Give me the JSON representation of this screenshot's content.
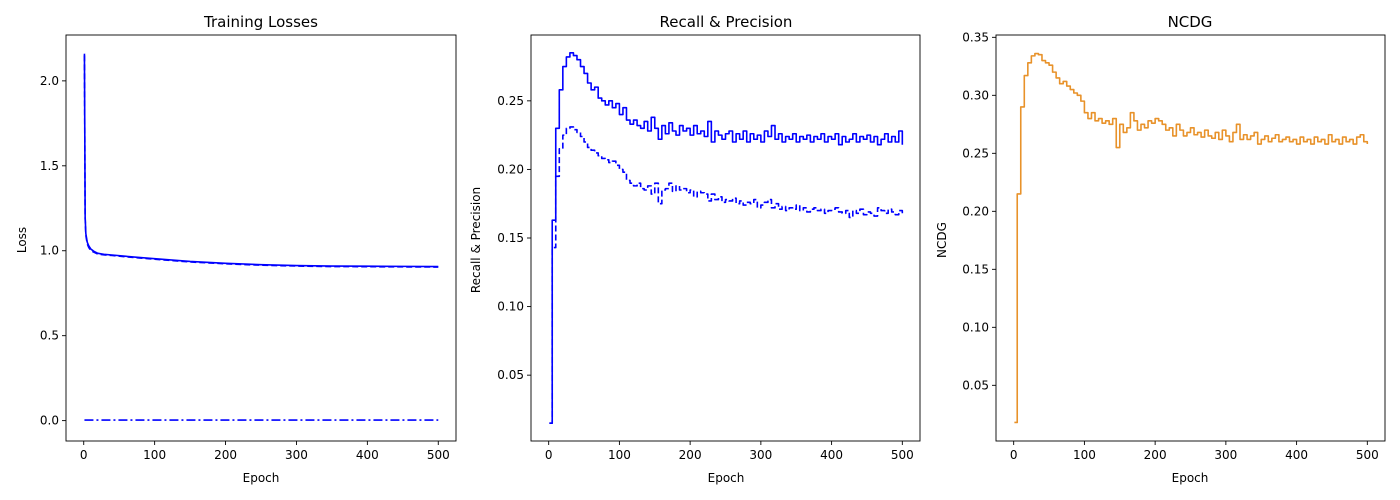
{
  "chart_data": [
    {
      "type": "line",
      "title": "Training Losses",
      "xlabel": "Epoch",
      "ylabel": "Loss",
      "xlim": [
        -25,
        525
      ],
      "ylim": [
        -0.12,
        2.27
      ],
      "xticks": [
        0,
        100,
        200,
        300,
        400,
        500
      ],
      "yticks": [
        0.0,
        0.5,
        1.0,
        1.5,
        2.0
      ],
      "ytick_labels": [
        "0.0",
        "0.5",
        "1.0",
        "1.5",
        "2.0"
      ],
      "grid": false,
      "series": [
        {
          "color": "#0000ff",
          "style": "solid",
          "step": false,
          "x": [
            1,
            2,
            3,
            5,
            7,
            10,
            15,
            20,
            30,
            40,
            60,
            80,
            100,
            150,
            200,
            250,
            300,
            350,
            400,
            450,
            500
          ],
          "y": [
            2.16,
            1.2,
            1.1,
            1.05,
            1.03,
            1.01,
            0.995,
            0.985,
            0.978,
            0.975,
            0.967,
            0.96,
            0.953,
            0.937,
            0.926,
            0.918,
            0.913,
            0.91,
            0.909,
            0.908,
            0.907
          ]
        },
        {
          "color": "#0000ff",
          "style": "dashed",
          "step": false,
          "x": [
            1,
            2,
            3,
            5,
            7,
            10,
            15,
            20,
            30,
            40,
            60,
            80,
            100,
            150,
            200,
            250,
            300,
            350,
            400,
            450,
            500
          ],
          "y": [
            2.15,
            1.19,
            1.09,
            1.04,
            1.02,
            1.0,
            0.99,
            0.98,
            0.975,
            0.972,
            0.964,
            0.957,
            0.95,
            0.934,
            0.923,
            0.915,
            0.91,
            0.907,
            0.906,
            0.905,
            0.904
          ]
        },
        {
          "color": "#0000ff",
          "style": "dashdot",
          "step": false,
          "x": [
            1,
            500
          ],
          "y": [
            0.003,
            0.003
          ]
        }
      ]
    },
    {
      "type": "line",
      "title": "Recall & Precision",
      "xlabel": "Epoch",
      "ylabel": "Recall & Precision",
      "xlim": [
        -25,
        525
      ],
      "ylim": [
        0.002,
        0.298
      ],
      "xticks": [
        0,
        100,
        200,
        300,
        400,
        500
      ],
      "yticks": [
        0.05,
        0.1,
        0.15,
        0.2,
        0.25
      ],
      "ytick_labels": [
        "0.05",
        "0.10",
        "0.15",
        "0.20",
        "0.25"
      ],
      "grid": false,
      "series": [
        {
          "color": "#0000ff",
          "style": "solid",
          "step": true,
          "x": [
            1,
            5,
            10,
            15,
            20,
            25,
            30,
            35,
            40,
            45,
            50,
            55,
            60,
            65,
            70,
            75,
            80,
            85,
            90,
            95,
            100,
            105,
            110,
            115,
            120,
            125,
            130,
            135,
            140,
            145,
            150,
            155,
            160,
            165,
            170,
            175,
            180,
            185,
            190,
            195,
            200,
            205,
            210,
            215,
            220,
            225,
            230,
            235,
            240,
            245,
            250,
            255,
            260,
            265,
            270,
            275,
            280,
            285,
            290,
            295,
            300,
            305,
            310,
            315,
            320,
            325,
            330,
            335,
            340,
            345,
            350,
            355,
            360,
            365,
            370,
            375,
            380,
            385,
            390,
            395,
            400,
            405,
            410,
            415,
            420,
            425,
            430,
            435,
            440,
            445,
            450,
            455,
            460,
            465,
            470,
            475,
            480,
            485,
            490,
            495,
            500
          ],
          "y": [
            0.015,
            0.163,
            0.23,
            0.258,
            0.275,
            0.282,
            0.285,
            0.283,
            0.28,
            0.275,
            0.27,
            0.263,
            0.258,
            0.26,
            0.252,
            0.25,
            0.247,
            0.25,
            0.245,
            0.248,
            0.24,
            0.245,
            0.236,
            0.233,
            0.236,
            0.232,
            0.23,
            0.235,
            0.228,
            0.238,
            0.23,
            0.222,
            0.232,
            0.226,
            0.234,
            0.228,
            0.225,
            0.232,
            0.228,
            0.23,
            0.225,
            0.232,
            0.226,
            0.228,
            0.224,
            0.235,
            0.22,
            0.228,
            0.225,
            0.222,
            0.226,
            0.228,
            0.22,
            0.226,
            0.222,
            0.228,
            0.22,
            0.226,
            0.222,
            0.225,
            0.22,
            0.228,
            0.224,
            0.232,
            0.222,
            0.226,
            0.22,
            0.224,
            0.222,
            0.226,
            0.22,
            0.224,
            0.222,
            0.225,
            0.22,
            0.224,
            0.222,
            0.226,
            0.22,
            0.224,
            0.222,
            0.226,
            0.218,
            0.224,
            0.22,
            0.222,
            0.226,
            0.22,
            0.224,
            0.222,
            0.225,
            0.22,
            0.224,
            0.218,
            0.222,
            0.226,
            0.22,
            0.224,
            0.22,
            0.228,
            0.218
          ]
        },
        {
          "color": "#0000ff",
          "style": "dashed",
          "step": true,
          "x": [
            1,
            5,
            10,
            15,
            20,
            25,
            30,
            35,
            40,
            45,
            50,
            55,
            60,
            65,
            70,
            75,
            80,
            85,
            90,
            95,
            100,
            105,
            110,
            115,
            120,
            125,
            130,
            135,
            140,
            145,
            150,
            155,
            160,
            165,
            170,
            175,
            180,
            185,
            190,
            195,
            200,
            205,
            210,
            215,
            220,
            225,
            230,
            235,
            240,
            245,
            250,
            255,
            260,
            265,
            270,
            275,
            280,
            285,
            290,
            295,
            300,
            305,
            310,
            315,
            320,
            325,
            330,
            335,
            340,
            345,
            350,
            355,
            360,
            365,
            370,
            375,
            380,
            385,
            390,
            395,
            400,
            405,
            410,
            415,
            420,
            425,
            430,
            435,
            440,
            445,
            450,
            455,
            460,
            465,
            470,
            475,
            480,
            485,
            490,
            495,
            500
          ],
          "y": [
            0.015,
            0.143,
            0.195,
            0.215,
            0.225,
            0.23,
            0.231,
            0.229,
            0.227,
            0.224,
            0.22,
            0.216,
            0.214,
            0.212,
            0.21,
            0.208,
            0.207,
            0.205,
            0.206,
            0.203,
            0.2,
            0.198,
            0.192,
            0.19,
            0.188,
            0.19,
            0.186,
            0.185,
            0.188,
            0.182,
            0.19,
            0.175,
            0.185,
            0.186,
            0.19,
            0.184,
            0.188,
            0.185,
            0.186,
            0.183,
            0.185,
            0.18,
            0.184,
            0.183,
            0.182,
            0.177,
            0.182,
            0.178,
            0.18,
            0.176,
            0.178,
            0.177,
            0.179,
            0.175,
            0.177,
            0.174,
            0.176,
            0.175,
            0.178,
            0.172,
            0.174,
            0.176,
            0.178,
            0.172,
            0.175,
            0.171,
            0.173,
            0.17,
            0.172,
            0.171,
            0.174,
            0.17,
            0.172,
            0.169,
            0.171,
            0.172,
            0.17,
            0.171,
            0.168,
            0.17,
            0.171,
            0.172,
            0.169,
            0.168,
            0.17,
            0.165,
            0.17,
            0.168,
            0.171,
            0.167,
            0.169,
            0.168,
            0.166,
            0.172,
            0.17,
            0.168,
            0.171,
            0.169,
            0.167,
            0.17,
            0.168
          ]
        }
      ]
    },
    {
      "type": "line",
      "title": "NCDG",
      "xlabel": "Epoch",
      "ylabel": "NCDG",
      "xlim": [
        -25,
        525
      ],
      "ylim": [
        0.002,
        0.352
      ],
      "xticks": [
        0,
        100,
        200,
        300,
        400,
        500
      ],
      "yticks": [
        0.05,
        0.1,
        0.15,
        0.2,
        0.25,
        0.3,
        0.35
      ],
      "ytick_labels": [
        "0.05",
        "0.10",
        "0.15",
        "0.20",
        "0.25",
        "0.30",
        "0.35"
      ],
      "grid": false,
      "series": [
        {
          "color": "#e8922a",
          "style": "solid",
          "step": true,
          "x": [
            1,
            5,
            10,
            15,
            20,
            25,
            30,
            35,
            40,
            45,
            50,
            55,
            60,
            65,
            70,
            75,
            80,
            85,
            90,
            95,
            100,
            105,
            110,
            115,
            120,
            125,
            130,
            135,
            140,
            145,
            150,
            155,
            160,
            165,
            170,
            175,
            180,
            185,
            190,
            195,
            200,
            205,
            210,
            215,
            220,
            225,
            230,
            235,
            240,
            245,
            250,
            255,
            260,
            265,
            270,
            275,
            280,
            285,
            290,
            295,
            300,
            305,
            310,
            315,
            320,
            325,
            330,
            335,
            340,
            345,
            350,
            355,
            360,
            365,
            370,
            375,
            380,
            385,
            390,
            395,
            400,
            405,
            410,
            415,
            420,
            425,
            430,
            435,
            440,
            445,
            450,
            455,
            460,
            465,
            470,
            475,
            480,
            485,
            490,
            495,
            500
          ],
          "y": [
            0.018,
            0.215,
            0.29,
            0.317,
            0.328,
            0.334,
            0.336,
            0.335,
            0.33,
            0.328,
            0.326,
            0.32,
            0.315,
            0.31,
            0.312,
            0.308,
            0.305,
            0.302,
            0.3,
            0.295,
            0.285,
            0.28,
            0.285,
            0.278,
            0.28,
            0.276,
            0.278,
            0.275,
            0.28,
            0.255,
            0.275,
            0.268,
            0.272,
            0.285,
            0.278,
            0.27,
            0.275,
            0.272,
            0.278,
            0.276,
            0.28,
            0.278,
            0.275,
            0.27,
            0.272,
            0.265,
            0.275,
            0.27,
            0.265,
            0.268,
            0.272,
            0.266,
            0.268,
            0.264,
            0.27,
            0.265,
            0.263,
            0.268,
            0.262,
            0.27,
            0.265,
            0.26,
            0.268,
            0.275,
            0.262,
            0.266,
            0.262,
            0.265,
            0.268,
            0.258,
            0.262,
            0.265,
            0.26,
            0.263,
            0.266,
            0.26,
            0.262,
            0.264,
            0.26,
            0.262,
            0.258,
            0.264,
            0.26,
            0.262,
            0.258,
            0.264,
            0.26,
            0.262,
            0.258,
            0.266,
            0.26,
            0.262,
            0.258,
            0.264,
            0.26,
            0.262,
            0.258,
            0.264,
            0.266,
            0.26,
            0.258
          ]
        }
      ]
    }
  ]
}
